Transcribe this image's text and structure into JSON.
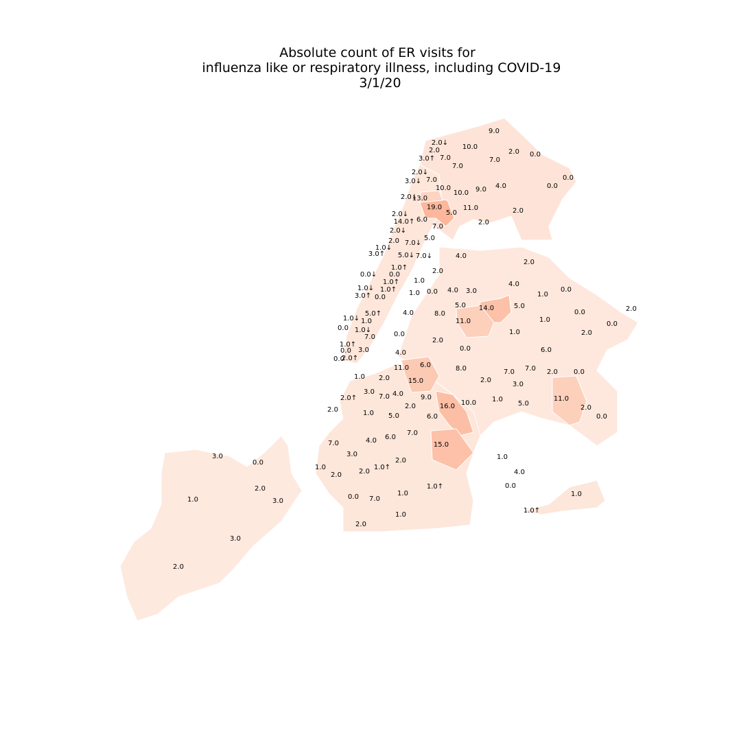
{
  "title": {
    "line1": "Absolute count of ER visits for",
    "line2": "influenza like or respiratory illness, including COVID-19",
    "line3": "3/1/20"
  },
  "colormap": {
    "low": "#fff5f0",
    "high": "#fc9272",
    "max_value": 19
  },
  "chart_data": {
    "type": "choropleth",
    "value_labels": [
      "9.0",
      "2.0↓",
      "10.0",
      "2.0",
      "3.0↑",
      "7.0",
      "2.0",
      "0.0",
      "7.0",
      "7.0",
      "2.0↓",
      "7.0",
      "3.0↓",
      "0.0",
      "0.0",
      "10.0",
      "9.0",
      "4.0",
      "10.0",
      "2.0↓",
      "13.0",
      "19.0",
      "5.0",
      "11.0",
      "2.0",
      "2.0↓",
      "14.0↑",
      "6.0",
      "2.0",
      "7.0",
      "2.0↓",
      "5.0",
      "2.0",
      "7.0↓",
      "1.0↓",
      "3.0↑",
      "5.0↓",
      "7.0↓",
      "4.0",
      "2.0",
      "1.0↑",
      "0.0↓",
      "0.0",
      "2.0",
      "4.0",
      "1.0↑",
      "1.0",
      "1.0↓",
      "1.0↑",
      "3.0",
      "0.0",
      "1.0",
      "0.0",
      "3.0↑",
      "0.0",
      "4.0",
      "1.0",
      "14.0",
      "5.0",
      "5.0",
      "0.0",
      "2.0",
      "5.0↑",
      "4.0",
      "8.0",
      "1.0↓",
      "1.0",
      "11.0",
      "1.0",
      "0.0",
      "1.0↓",
      "2.0",
      "0.0",
      "7.0",
      "0.0",
      "1.0",
      "2.0",
      "1.0↑",
      "3.0",
      "0.0",
      "0.0",
      "6.0",
      "0.0",
      "4.0",
      "2.0↑",
      "11.0",
      "6.0",
      "8.0",
      "7.0",
      "7.0",
      "2.0",
      "0.0",
      "1.0",
      "2.0",
      "15.0",
      "2.0",
      "3.0",
      "3.0",
      "4.0",
      "7.0",
      "9.0",
      "11.0",
      "2.0↑",
      "1.0",
      "5.0",
      "2.0",
      "16.0",
      "10.0",
      "2.0",
      "2.0",
      "1.0",
      "5.0",
      "6.0",
      "0.0",
      "6.0",
      "7.0",
      "7.0",
      "4.0",
      "15.0",
      "3.0",
      "0.0",
      "3.0",
      "1.0",
      "2.0",
      "1.0",
      "2.0",
      "2.0",
      "1.0↑",
      "4.0",
      "1.0",
      "2.0",
      "0.0",
      "1.0↑",
      "3.0",
      "0.0",
      "7.0",
      "1.0",
      "1.0",
      "1.0↑",
      "1.0",
      "2.0",
      "3.0",
      "2.0"
    ],
    "colorbar": "none",
    "legend": "none"
  }
}
